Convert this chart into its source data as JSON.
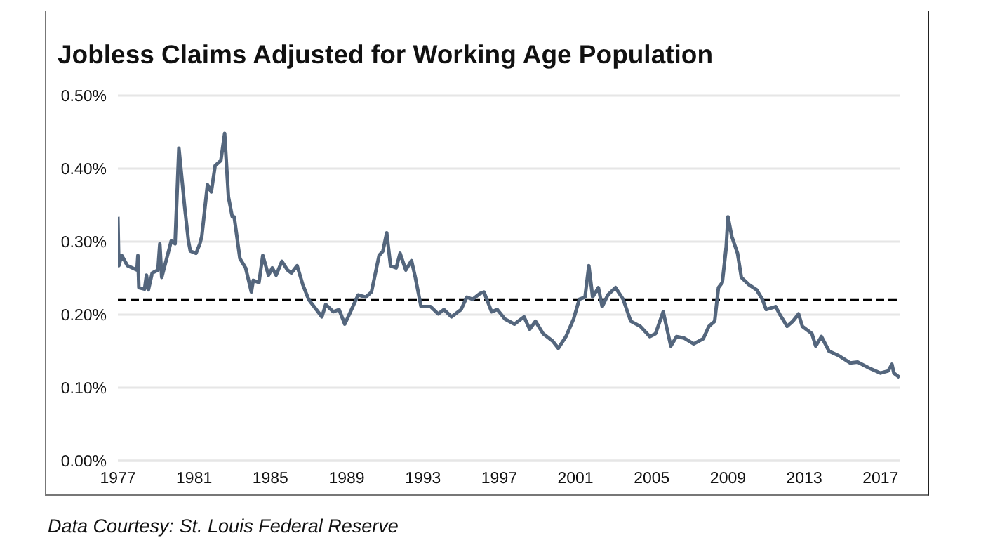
{
  "chart_data": {
    "type": "line",
    "title": "Jobless Claims Adjusted for Working Age Population",
    "annotations": [
      "Data Courtesy: St. Louis Federal Reserve"
    ],
    "x": [
      1977.0,
      1977.05,
      1977.2,
      1977.5,
      1978.0,
      1978.05,
      1978.1,
      1978.4,
      1978.5,
      1978.6,
      1978.8,
      1979.1,
      1979.2,
      1979.3,
      1979.6,
      1979.8,
      1980.0,
      1980.2,
      1980.5,
      1980.7,
      1980.8,
      1981.1,
      1981.3,
      1981.4,
      1981.7,
      1981.9,
      1982.1,
      1982.4,
      1982.6,
      1982.8,
      1983.0,
      1983.1,
      1983.4,
      1983.7,
      1984.0,
      1984.1,
      1984.4,
      1984.6,
      1984.9,
      1985.1,
      1985.3,
      1985.6,
      1985.9,
      1986.1,
      1986.4,
      1986.7,
      1987.0,
      1987.7,
      1987.9,
      1988.3,
      1988.6,
      1988.9,
      1989.2,
      1989.6,
      1990.0,
      1990.3,
      1990.7,
      1990.9,
      1991.1,
      1991.3,
      1991.6,
      1991.8,
      1992.1,
      1992.4,
      1992.6,
      1992.9,
      1993.4,
      1993.8,
      1994.1,
      1994.5,
      1995.0,
      1995.3,
      1995.6,
      1996.0,
      1996.2,
      1996.6,
      1996.9,
      1997.3,
      1997.8,
      1998.3,
      1998.6,
      1998.9,
      1999.3,
      1999.8,
      2000.1,
      2000.5,
      2000.9,
      2001.2,
      2001.5,
      2001.7,
      2001.9,
      2002.2,
      2002.4,
      2002.7,
      2003.1,
      2003.5,
      2003.9,
      2004.4,
      2004.9,
      2005.2,
      2005.6,
      2006.0,
      2006.3,
      2006.7,
      2007.2,
      2007.7,
      2008.0,
      2008.3,
      2008.5,
      2008.7,
      2008.9,
      2009.0,
      2009.2,
      2009.5,
      2009.7,
      2010.1,
      2010.5,
      2010.8,
      2011.0,
      2011.5,
      2011.7,
      2012.1,
      2012.4,
      2012.7,
      2012.9,
      2013.4,
      2013.6,
      2013.9,
      2014.3,
      2014.8,
      2015.4,
      2015.8,
      2016.4,
      2017.0,
      2017.4,
      2017.6,
      2017.7,
      2018.0
    ],
    "series": [
      {
        "color": "#54667d",
        "values": [
          0.334,
          0.267,
          0.281,
          0.267,
          0.261,
          0.281,
          0.237,
          0.235,
          0.254,
          0.234,
          0.257,
          0.261,
          0.297,
          0.251,
          0.281,
          0.301,
          0.297,
          0.428,
          0.348,
          0.301,
          0.287,
          0.284,
          0.297,
          0.307,
          0.378,
          0.368,
          0.404,
          0.411,
          0.448,
          0.361,
          0.334,
          0.334,
          0.277,
          0.264,
          0.231,
          0.247,
          0.244,
          0.281,
          0.254,
          0.264,
          0.254,
          0.273,
          0.261,
          0.257,
          0.267,
          0.241,
          0.221,
          0.197,
          0.214,
          0.204,
          0.207,
          0.187,
          0.204,
          0.227,
          0.224,
          0.231,
          0.281,
          0.287,
          0.312,
          0.267,
          0.264,
          0.284,
          0.261,
          0.274,
          0.251,
          0.211,
          0.211,
          0.201,
          0.207,
          0.197,
          0.207,
          0.224,
          0.221,
          0.229,
          0.231,
          0.204,
          0.207,
          0.194,
          0.187,
          0.197,
          0.18,
          0.191,
          0.174,
          0.164,
          0.154,
          0.17,
          0.194,
          0.221,
          0.224,
          0.267,
          0.224,
          0.237,
          0.211,
          0.227,
          0.237,
          0.221,
          0.191,
          0.184,
          0.17,
          0.174,
          0.204,
          0.157,
          0.17,
          0.168,
          0.16,
          0.167,
          0.184,
          0.191,
          0.237,
          0.244,
          0.291,
          0.334,
          0.307,
          0.284,
          0.251,
          0.241,
          0.234,
          0.221,
          0.207,
          0.211,
          0.201,
          0.184,
          0.191,
          0.201,
          0.184,
          0.174,
          0.157,
          0.17,
          0.15,
          0.144,
          0.134,
          0.135,
          0.127,
          0.12,
          0.123,
          0.132,
          0.12,
          0.114
        ]
      }
    ],
    "xlim": [
      1977,
      2018
    ],
    "xticks": [
      1977,
      1981,
      1985,
      1989,
      1993,
      1997,
      2001,
      2005,
      2009,
      2013,
      2017
    ],
    "ylim": [
      0,
      0.5
    ],
    "yticks": [
      {
        "value": 0,
        "label": "0.00%"
      },
      {
        "value": 0.1,
        "label": "0.10%"
      },
      {
        "value": 0.2,
        "label": "0.20%"
      },
      {
        "value": 0.3,
        "label": "0.30%"
      },
      {
        "value": 0.4,
        "label": "0.40%"
      },
      {
        "value": 0.5,
        "label": "0.50%"
      }
    ],
    "ref_lines": [
      {
        "axis": "y",
        "value": 0.22,
        "color": "#000000",
        "line_style": "dashed"
      }
    ],
    "grid": "y",
    "legend": false,
    "marker": "none",
    "line_style": "solid"
  }
}
